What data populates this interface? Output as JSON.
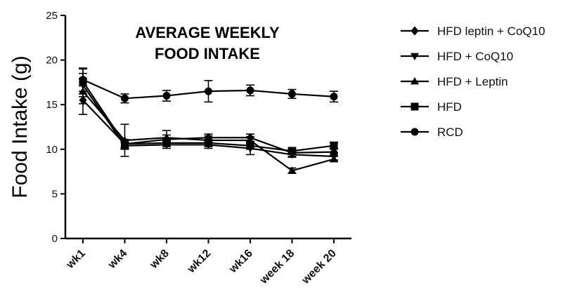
{
  "chart_data": {
    "type": "line",
    "title_lines": [
      "AVERAGE WEEKLY",
      "FOOD INTAKE"
    ],
    "ylabel": "Food Intake (g)",
    "xlabel": "",
    "categories": [
      "wk1",
      "wk4",
      "wk8",
      "wk12",
      "wk16",
      "week 18",
      "week 20"
    ],
    "ylim": [
      0,
      25
    ],
    "yticks": [
      0,
      5,
      10,
      15,
      20,
      25
    ],
    "legend_position": "right",
    "grid": false,
    "series": [
      {
        "name": "HFD leptin + CoQ10",
        "marker": "diamond",
        "values": [
          15.5,
          10.6,
          11.1,
          11.3,
          11.3,
          9.6,
          9.7
        ],
        "errors": [
          1.6,
          0.5,
          0.5,
          0.4,
          0.4,
          0.4,
          0.4
        ]
      },
      {
        "name": "HFD + CoQ10",
        "marker": "triangle-down",
        "values": [
          17.2,
          10.4,
          10.5,
          10.5,
          10.1,
          9.4,
          9.2
        ],
        "errors": [
          1.3,
          0.4,
          0.4,
          0.4,
          0.7,
          0.3,
          0.4
        ]
      },
      {
        "name": "HFD + Leptin",
        "marker": "triangle-up",
        "values": [
          16.5,
          11.0,
          11.3,
          11.0,
          11.0,
          7.6,
          8.9
        ],
        "errors": [
          1.4,
          1.8,
          0.8,
          0.5,
          0.4,
          0.3,
          0.3
        ]
      },
      {
        "name": "HFD",
        "marker": "square",
        "values": [
          17.6,
          10.6,
          10.7,
          10.7,
          10.4,
          9.8,
          10.4
        ],
        "errors": [
          1.4,
          0.4,
          0.4,
          0.4,
          0.4,
          0.4,
          0.4
        ]
      },
      {
        "name": "RCD",
        "marker": "circle",
        "values": [
          17.8,
          15.7,
          16.0,
          16.5,
          16.6,
          16.2,
          15.9
        ],
        "errors": [
          1.3,
          0.5,
          0.6,
          1.2,
          0.6,
          0.5,
          0.6
        ]
      }
    ]
  }
}
